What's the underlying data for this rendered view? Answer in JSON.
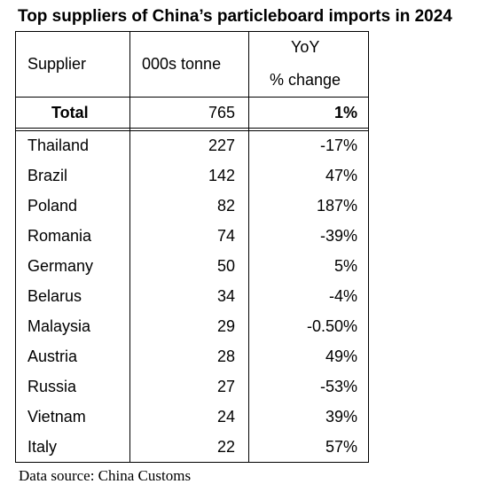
{
  "title": "Top suppliers of China’s particleboard imports in 2024",
  "source": "Data source: China Customs",
  "chart_data": {
    "type": "table",
    "title": "Top suppliers of China’s particleboard imports in 2024",
    "columns": [
      "Supplier",
      "000s tonne",
      "YoY",
      "% change"
    ],
    "header": {
      "supplier": "Supplier",
      "volume": "000s tonne",
      "yoy_line1": "YoY",
      "yoy_line2": "% change"
    },
    "total": {
      "label": "Total",
      "volume": "765",
      "yoy": "1%"
    },
    "rows": [
      {
        "supplier": "Thailand",
        "volume": "227",
        "yoy": "-17%"
      },
      {
        "supplier": "Brazil",
        "volume": "142",
        "yoy": "47%"
      },
      {
        "supplier": "Poland",
        "volume": "82",
        "yoy": "187%"
      },
      {
        "supplier": "Romania",
        "volume": "74",
        "yoy": "-39%"
      },
      {
        "supplier": "Germany",
        "volume": "50",
        "yoy": "5%"
      },
      {
        "supplier": "Belarus",
        "volume": "34",
        "yoy": "-4%"
      },
      {
        "supplier": "Malaysia",
        "volume": "29",
        "yoy": "-0.50%"
      },
      {
        "supplier": "Austria",
        "volume": "28",
        "yoy": "49%"
      },
      {
        "supplier": "Russia",
        "volume": "27",
        "yoy": "-53%"
      },
      {
        "supplier": "Vietnam",
        "volume": "24",
        "yoy": "39%"
      },
      {
        "supplier": "Italy",
        "volume": "22",
        "yoy": "57%"
      }
    ]
  }
}
